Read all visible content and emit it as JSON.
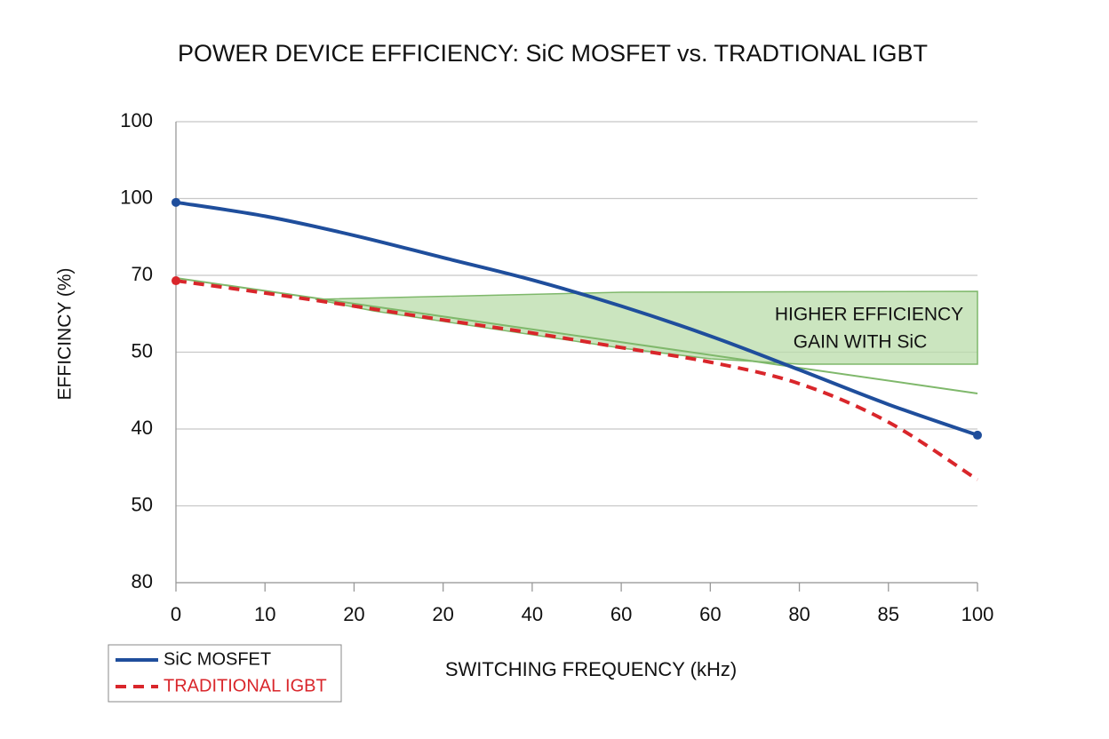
{
  "chart_data": {
    "type": "line",
    "title": "POWER DEVICE EFFICIENCY: SiC MOSFET vs. TRADTIONAL IGBT",
    "x_label": "SWITCHING FREQUENCY (kHz)",
    "y_label": "EFFICINCY (%)",
    "x": [
      0,
      1,
      2,
      3,
      4,
      5,
      6,
      7,
      8,
      9
    ],
    "xlim": [
      0,
      9
    ],
    "xticks": [
      {
        "value": 0,
        "label": "0"
      },
      {
        "value": 1,
        "label": "10"
      },
      {
        "value": 2,
        "label": "20"
      },
      {
        "value": 3,
        "label": "20"
      },
      {
        "value": 4,
        "label": "40"
      },
      {
        "value": 5,
        "label": "60"
      },
      {
        "value": 6,
        "label": "60"
      },
      {
        "value": 7,
        "label": "80"
      },
      {
        "value": 8,
        "label": "85"
      },
      {
        "value": 9,
        "label": "100"
      }
    ],
    "ylim": [
      0,
      6
    ],
    "yticks": [
      {
        "value": 0,
        "label": "80"
      },
      {
        "value": 1,
        "label": "50"
      },
      {
        "value": 2,
        "label": "40"
      },
      {
        "value": 3,
        "label": "50"
      },
      {
        "value": 4,
        "label": "70"
      },
      {
        "value": 5,
        "label": "100"
      },
      {
        "value": 6,
        "label": "100"
      }
    ],
    "grid": true,
    "legend": "bottom-left",
    "series": [
      {
        "name": "SiC MOSFET",
        "color": "#1f4e9c",
        "dash": false,
        "values": [
          4.95,
          4.77,
          4.52,
          4.23,
          3.94,
          3.6,
          3.21,
          2.77,
          2.32,
          1.92
        ]
      },
      {
        "name": "TRADITIONAL IGBT",
        "color": "#d9262b",
        "dash": true,
        "values": [
          3.93,
          3.77,
          3.6,
          3.42,
          3.25,
          3.06,
          2.87,
          2.59,
          2.09,
          1.34
        ]
      }
    ],
    "annotation": [
      "HIGHER EFFICIENCY",
      "GAIN WITH SiC"
    ]
  }
}
